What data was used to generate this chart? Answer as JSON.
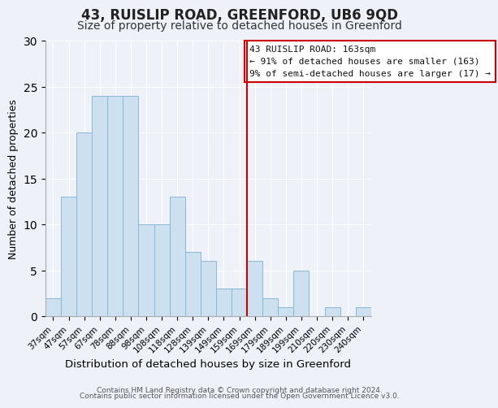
{
  "title": "43, RUISLIP ROAD, GREENFORD, UB6 9QD",
  "subtitle": "Size of property relative to detached houses in Greenford",
  "xlabel": "Distribution of detached houses by size in Greenford",
  "ylabel": "Number of detached properties",
  "bar_labels": [
    "37sqm",
    "47sqm",
    "57sqm",
    "67sqm",
    "78sqm",
    "88sqm",
    "98sqm",
    "108sqm",
    "118sqm",
    "128sqm",
    "139sqm",
    "149sqm",
    "159sqm",
    "169sqm",
    "179sqm",
    "189sqm",
    "199sqm",
    "210sqm",
    "220sqm",
    "230sqm",
    "240sqm"
  ],
  "bar_values": [
    2,
    13,
    20,
    24,
    24,
    24,
    10,
    10,
    13,
    7,
    6,
    3,
    3,
    6,
    2,
    1,
    5,
    0,
    1,
    0,
    1
  ],
  "bar_color": "#cce0f0",
  "bar_edgecolor": "#88b8d8",
  "vline_color": "#cc0000",
  "ylim": [
    0,
    30
  ],
  "yticks": [
    0,
    5,
    10,
    15,
    20,
    25,
    30
  ],
  "annotation_title": "43 RUISLIP ROAD: 163sqm",
  "annotation_line1": "← 91% of detached houses are smaller (163)",
  "annotation_line2": "9% of semi-detached houses are larger (17) →",
  "annotation_box_facecolor": "#ffffff",
  "annotation_box_edgecolor": "#cc0000",
  "footer_line1": "Contains HM Land Registry data © Crown copyright and database right 2024.",
  "footer_line2": "Contains public sector information licensed under the Open Government Licence v3.0.",
  "bg_color": "#eef2f8",
  "title_fontsize": 12,
  "subtitle_fontsize": 10,
  "xlabel_fontsize": 9.5,
  "ylabel_fontsize": 9,
  "tick_fontsize": 7.5,
  "annot_fontsize": 8,
  "footer_fontsize": 6.5,
  "vline_index": 12.5
}
